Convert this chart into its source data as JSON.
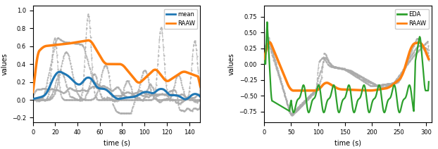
{
  "left": {
    "xlabel": "time (s)",
    "ylabel": "values",
    "xlim": [
      0,
      150
    ],
    "ylim": [
      -0.25,
      1.05
    ],
    "yticks": [
      -0.2,
      0.0,
      0.2,
      0.4,
      0.6,
      0.8,
      1.0
    ],
    "xticks": [
      0,
      20,
      40,
      60,
      80,
      100,
      120,
      140
    ],
    "legend": [
      {
        "label": "mean",
        "color": "#1f77b4",
        "lw": 2.2
      },
      {
        "label": "RAAW",
        "color": "#ff7f0e",
        "lw": 2.5
      }
    ],
    "gray_color": "#aaaaaa",
    "gray_lw": 0.9
  },
  "right": {
    "xlabel": "time (s)",
    "ylabel": "values",
    "xlim": [
      0,
      310
    ],
    "ylim": [
      -0.92,
      0.92
    ],
    "yticks": [
      -0.75,
      -0.5,
      -0.25,
      0.0,
      0.25,
      0.5,
      0.75
    ],
    "xticks": [
      0,
      50,
      100,
      150,
      200,
      250,
      300
    ],
    "legend": [
      {
        "label": "EDA",
        "color": "#2ca02c",
        "lw": 1.6
      },
      {
        "label": "RAAW",
        "color": "#ff7f0e",
        "lw": 2.5
      }
    ],
    "gray_color": "#aaaaaa",
    "gray_lw": 0.9
  }
}
